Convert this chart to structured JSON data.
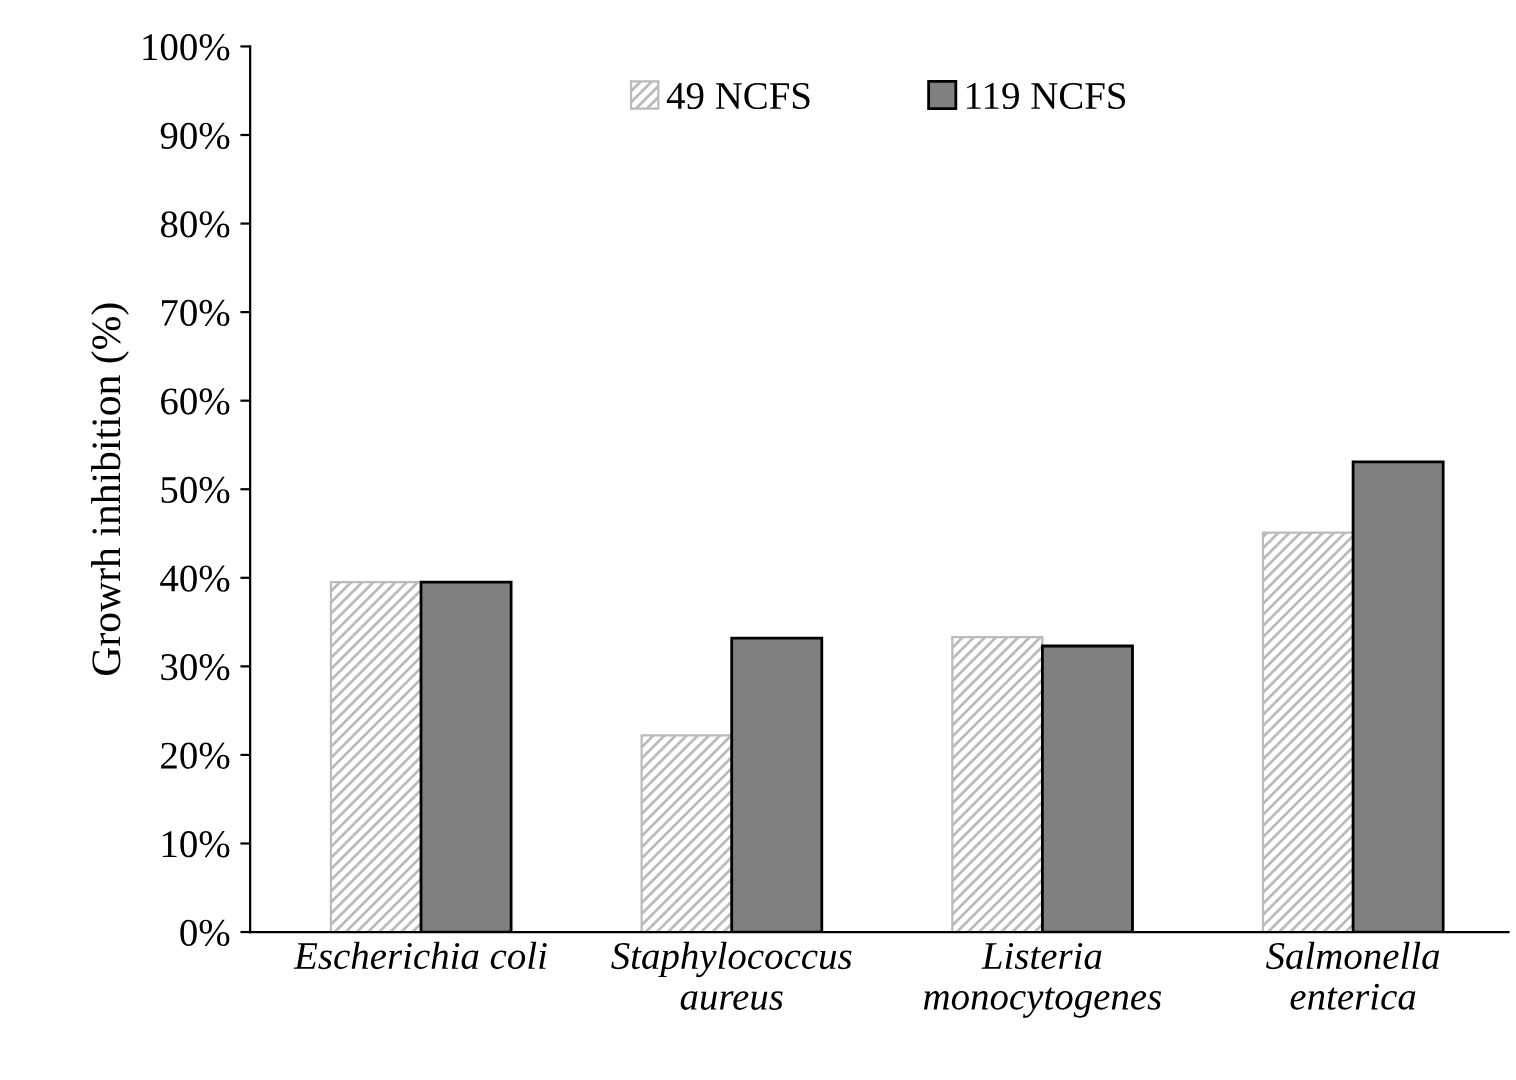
{
  "chart_data": {
    "type": "bar",
    "ylabel": "Growrh inhibition (%)",
    "categories": [
      "Escherichia coli",
      "Staphylococcus\naureus",
      "Listeria\nmonocytogenes",
      "Salmonella\nenterica"
    ],
    "series": [
      {
        "name": "49 NCFS",
        "color": "#bbbbbb",
        "values": [
          39.5,
          22.2,
          33.3,
          45.1
        ]
      },
      {
        "name": "119 NCFS",
        "color": "#808080",
        "values": [
          39.5,
          33.2,
          32.3,
          53.1
        ]
      }
    ],
    "ylim": [
      0,
      100
    ],
    "yticks": [
      {
        "value": 0,
        "label": "0%"
      },
      {
        "value": 10,
        "label": "10%"
      },
      {
        "value": 20,
        "label": "20%"
      },
      {
        "value": 30,
        "label": "30%"
      },
      {
        "value": 40,
        "label": "40%"
      },
      {
        "value": 50,
        "label": "50%"
      },
      {
        "value": 60,
        "label": "60%"
      },
      {
        "value": 70,
        "label": "70%"
      },
      {
        "value": 80,
        "label": "80%"
      },
      {
        "value": 90,
        "label": "90%"
      },
      {
        "value": 100,
        "label": "100%"
      }
    ],
    "grid": false,
    "legend": "top"
  }
}
